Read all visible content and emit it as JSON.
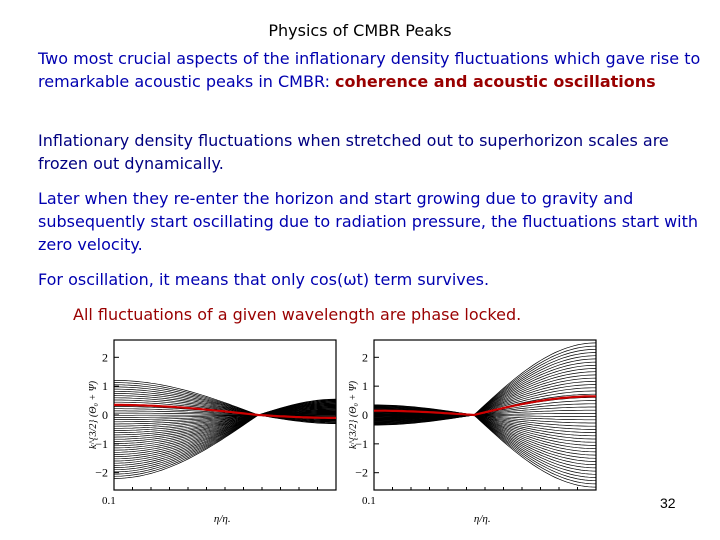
{
  "slide": {
    "title": "Physics of CMBR Peaks",
    "p1_text": "Two most crucial aspects of the inflationary density fluctuations which gave rise to remarkable acoustic peaks in CMBR:  ",
    "p1_emphasis": "coherence and acoustic oscillations",
    "p2": "Inflationary density fluctuations when stretched out to superhorizon scales are frozen out dynamically.",
    "p3": "Later when they re-enter the horizon and start growing due to gravity  and subsequently start oscillating due to radiation pressure, the fluctuations start with zero velocity.",
    "p4": "For oscillation, it means that only cos(ωt) term survives.",
    "p5": "All fluctuations of a given wavelength are phase locked.",
    "page_number": "32"
  },
  "colors": {
    "title": "#000000",
    "body_text": "#000080",
    "emphasis": "#990000",
    "curves": "#000000",
    "highlight_curve": "#cc0000"
  },
  "chart_data": [
    {
      "type": "line",
      "title": "",
      "xlabel": "η/η.",
      "ylabel": "k^{3/2} (Θ₀ + Ψ)",
      "xtick_labels": [
        "0.1"
      ],
      "yticks": [
        2,
        1,
        0,
        -1,
        -2
      ],
      "ylim": [
        -2.6,
        2.6
      ],
      "x_log": true,
      "node": 0.65,
      "description_level": "many coherent modes starting from common node",
      "series": [
        {
          "name": "",
          "amplitudes_left": [
            0.1,
            0.2,
            0.35,
            0.5,
            0.7,
            0.9,
            1.1
          ],
          "highlight": false
        },
        {
          "name": "",
          "amplitudes_left": [
            -0.2,
            -0.4,
            -0.6,
            -0.8,
            -1.0,
            -1.2,
            -1.4,
            -1.6,
            -1.8,
            -2.0
          ],
          "highlight": false
        },
        {
          "name": "",
          "amplitudes_left": [
            0.4
          ],
          "highlight": true
        }
      ]
    },
    {
      "type": "line",
      "title": "",
      "xlabel": "η/η.",
      "ylabel": "k^{3/2} (Θ₀ + Ψ)",
      "xtick_labels": [
        "0.1"
      ],
      "yticks": [
        2,
        1,
        0,
        -1,
        -2
      ],
      "ylim": [
        -2.6,
        2.6
      ],
      "x_log": true,
      "node": 0.45,
      "series": [
        {
          "name": "",
          "amplitudes_right": [
            1.2,
            1.6,
            2.0,
            2.4,
            2.7
          ],
          "highlight": false
        },
        {
          "name": "",
          "amplitudes_right": [
            0.6
          ],
          "highlight": true
        }
      ]
    }
  ]
}
